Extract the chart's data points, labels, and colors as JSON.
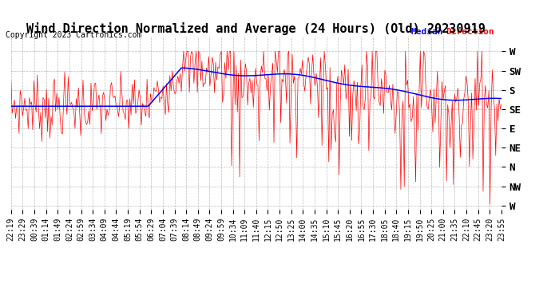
{
  "title": "Wind Direction Normalized and Average (24 Hours) (Old) 20230919",
  "copyright": "Copyright 2023 Cartronics.com",
  "background_color": "#ffffff",
  "grid_color": "#aaaaaa",
  "y_tick_labels": [
    "W",
    "SW",
    "S",
    "SE",
    "E",
    "NE",
    "N",
    "NW",
    "W"
  ],
  "y_tick_positions": [
    8,
    7,
    6,
    5,
    4,
    3,
    2,
    1,
    0
  ],
  "x_tick_labels": [
    "22:19",
    "23:29",
    "00:39",
    "01:14",
    "01:49",
    "02:24",
    "02:59",
    "03:34",
    "04:09",
    "04:44",
    "05:19",
    "05:54",
    "06:29",
    "07:04",
    "07:39",
    "08:14",
    "08:49",
    "09:24",
    "09:59",
    "10:34",
    "11:09",
    "11:40",
    "12:15",
    "12:50",
    "13:25",
    "14:00",
    "14:35",
    "15:10",
    "15:45",
    "16:20",
    "16:55",
    "17:30",
    "18:05",
    "18:40",
    "19:15",
    "19:50",
    "20:25",
    "21:00",
    "21:35",
    "22:10",
    "22:45",
    "23:20",
    "23:55"
  ],
  "line_color_raw": "#ff0000",
  "line_color_median": "#0000ff",
  "title_fontsize": 11,
  "copyright_fontsize": 7,
  "ytick_fontsize": 9,
  "xtick_fontsize": 7
}
